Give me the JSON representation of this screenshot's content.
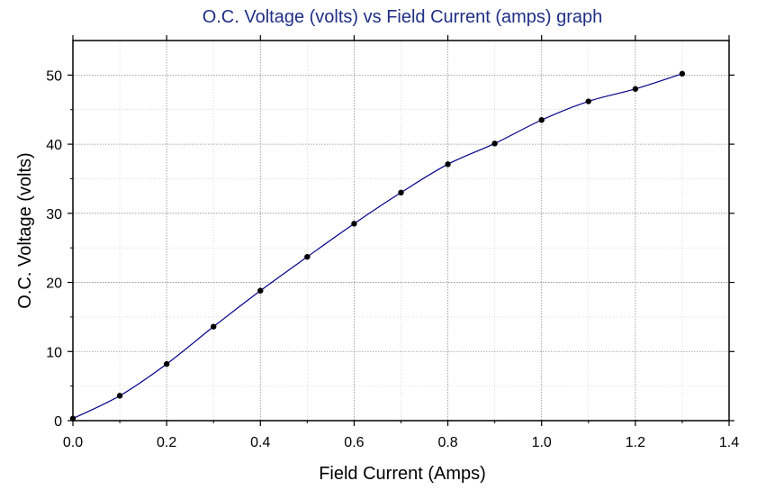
{
  "chart_data": {
    "type": "line",
    "title": "O.C. Voltage (volts) vs Field Current (amps) graph",
    "xlabel": "Field Current (Amps)",
    "ylabel": "O.C. Voltage (volts)",
    "xlim": [
      0,
      1.4
    ],
    "ylim": [
      0,
      55
    ],
    "xticks": [
      "0.0",
      "0.2",
      "0.4",
      "0.6",
      "0.8",
      "1.0",
      "1.2",
      "1.4"
    ],
    "yticks": [
      "0",
      "10",
      "20",
      "30",
      "40",
      "50"
    ],
    "grid": true,
    "series": [
      {
        "color": "#00008b",
        "marker_color": "#000000",
        "x": [
          0,
          0.1,
          0.2,
          0.3,
          0.4,
          0.5,
          0.6,
          0.7,
          0.8,
          0.9,
          1.0,
          1.1,
          1.2,
          1.3
        ],
        "y": [
          0.3,
          3.6,
          8.2,
          13.6,
          18.8,
          23.7,
          28.5,
          33.0,
          37.1,
          40.1,
          43.5,
          46.2,
          48.0,
          50.2
        ]
      }
    ]
  }
}
